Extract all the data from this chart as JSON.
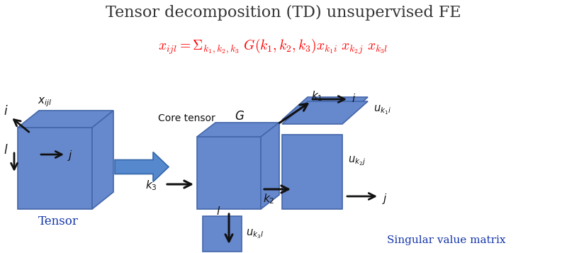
{
  "title": "Tensor decomposition (TD) unsupervised FE",
  "title_color": "#333333",
  "title_fontsize": 16,
  "formula": "$x_{ijl} = \\Sigma_{k_1,k_2,k_3}\\; G(k_1,k_2,k_3)x_{k_1i}\\; x_{k_2j}\\; x_{k_3l}$",
  "formula_color": "#ff0000",
  "formula_fontsize": 15,
  "bg_color": "#ffffff",
  "box_color": "#6688cc",
  "box_face_light": "#7799dd",
  "box_edge_color": "#4466aa",
  "arrow_color": "#111111",
  "text_color": "#111111",
  "label_color": "#1133aa"
}
